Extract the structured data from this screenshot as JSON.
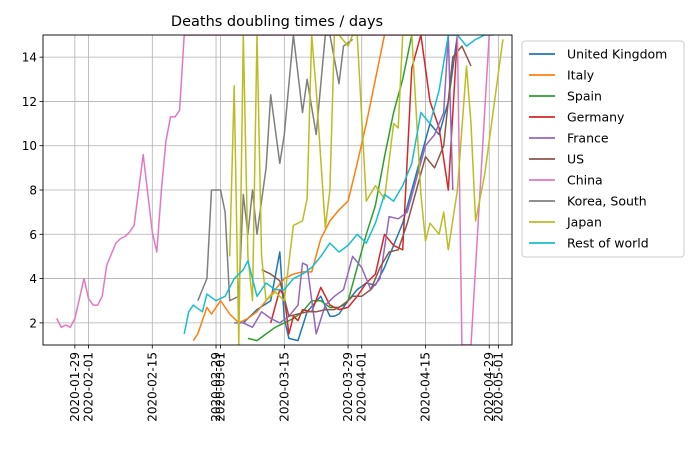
{
  "chart_data": {
    "type": "line",
    "title": "Deaths doubling times / days",
    "xlabel": "",
    "ylabel": "",
    "x_is_date": true,
    "xlim": [
      "2020-01-22",
      "2020-05-04"
    ],
    "ylim": [
      1,
      15
    ],
    "grid": true,
    "legend_placement": "outside-right",
    "x_ticks": [
      "2020-01-29",
      "2020-02-01",
      "2020-02-15",
      "2020-02-29",
      "2020-03-01",
      "2020-03-15",
      "2020-03-29",
      "2020-04-01",
      "2020-04-15",
      "2020-04-29",
      "2020-05-01"
    ],
    "y_ticks": [
      2,
      4,
      6,
      8,
      10,
      12,
      14
    ],
    "series": [
      {
        "name": "United Kingdom",
        "color": "#1f77b4",
        "x": [
          "2020-03-06",
          "2020-03-09",
          "2020-03-12",
          "2020-03-14",
          "2020-03-15",
          "2020-03-16",
          "2020-03-18",
          "2020-03-20",
          "2020-03-23",
          "2020-03-25",
          "2020-03-26",
          "2020-03-27",
          "2020-03-29",
          "2020-03-31",
          "2020-04-02",
          "2020-04-04",
          "2020-04-06",
          "2020-04-08",
          "2020-04-10",
          "2020-04-12",
          "2020-04-14",
          "2020-04-16",
          "2020-04-18",
          "2020-04-20",
          "2020-04-22"
        ],
        "values": [
          2.0,
          2.6,
          3.0,
          5.2,
          2.2,
          1.3,
          1.2,
          2.5,
          3.2,
          2.3,
          2.3,
          2.4,
          3.0,
          3.5,
          3.8,
          3.7,
          4.5,
          5.5,
          6.5,
          8.0,
          9.5,
          11.0,
          10.5,
          12.0,
          15.0
        ]
      },
      {
        "name": "Italy",
        "color": "#ff7f0e",
        "x": [
          "2020-02-24",
          "2020-02-25",
          "2020-02-27",
          "2020-02-28",
          "2020-03-01",
          "2020-03-03",
          "2020-03-05",
          "2020-03-07",
          "2020-03-09",
          "2020-03-11",
          "2020-03-13",
          "2020-03-15",
          "2020-03-17",
          "2020-03-19",
          "2020-03-21",
          "2020-03-23",
          "2020-03-25",
          "2020-03-27",
          "2020-03-29",
          "2020-03-31",
          "2020-04-02",
          "2020-04-04",
          "2020-04-06"
        ],
        "values": [
          1.2,
          1.5,
          2.7,
          2.4,
          3.0,
          2.4,
          2.0,
          2.2,
          2.5,
          3.0,
          3.5,
          4.0,
          4.2,
          4.3,
          4.3,
          5.8,
          6.6,
          7.1,
          7.5,
          9.2,
          11.0,
          13.0,
          15.0
        ]
      },
      {
        "name": "Spain",
        "color": "#2ca02c",
        "x": [
          "2020-03-07",
          "2020-03-09",
          "2020-03-11",
          "2020-03-13",
          "2020-03-15",
          "2020-03-17",
          "2020-03-19",
          "2020-03-21",
          "2020-03-23",
          "2020-03-25",
          "2020-03-27",
          "2020-03-29",
          "2020-03-31",
          "2020-04-02",
          "2020-04-04",
          "2020-04-06",
          "2020-04-08",
          "2020-04-10",
          "2020-04-12"
        ],
        "values": [
          1.3,
          1.2,
          1.5,
          1.8,
          2.0,
          2.2,
          2.5,
          3.0,
          3.0,
          2.7,
          2.7,
          3.0,
          4.5,
          6.0,
          7.3,
          9.5,
          11.5,
          13.0,
          15.0
        ]
      },
      {
        "name": "Germany",
        "color": "#d62728",
        "x": [
          "2020-03-12",
          "2020-03-14",
          "2020-03-15",
          "2020-03-16",
          "2020-03-17",
          "2020-03-18",
          "2020-03-19",
          "2020-03-21",
          "2020-03-23",
          "2020-03-25",
          "2020-03-27",
          "2020-03-29",
          "2020-03-31",
          "2020-04-02",
          "2020-04-04",
          "2020-04-06",
          "2020-04-08",
          "2020-04-10",
          "2020-04-12",
          "2020-04-14",
          "2020-04-16",
          "2020-04-18",
          "2020-04-20",
          "2020-04-22"
        ],
        "values": [
          2.0,
          3.5,
          3.2,
          1.5,
          2.3,
          2.1,
          2.6,
          2.5,
          3.6,
          2.8,
          2.6,
          2.7,
          3.2,
          3.8,
          4.2,
          6.0,
          5.5,
          5.3,
          13.5,
          15.0,
          12.0,
          10.8,
          8.0,
          15.0
        ]
      },
      {
        "name": "France",
        "color": "#9467bd",
        "x": [
          "2020-03-04",
          "2020-03-06",
          "2020-03-08",
          "2020-03-10",
          "2020-03-12",
          "2020-03-14",
          "2020-03-16",
          "2020-03-18",
          "2020-03-19",
          "2020-03-20",
          "2020-03-22",
          "2020-03-24",
          "2020-03-26",
          "2020-03-28",
          "2020-03-30",
          "2020-04-01",
          "2020-04-03",
          "2020-04-05",
          "2020-04-07",
          "2020-04-09",
          "2020-04-11",
          "2020-04-13",
          "2020-04-15",
          "2020-04-17",
          "2020-04-19",
          "2020-04-20",
          "2020-04-21"
        ],
        "values": [
          2.0,
          2.0,
          1.8,
          2.5,
          2.2,
          2.0,
          2.3,
          2.8,
          4.7,
          4.6,
          1.5,
          2.8,
          3.2,
          3.5,
          5.0,
          4.5,
          3.5,
          4.0,
          6.8,
          6.7,
          7.0,
          8.5,
          10.0,
          10.5,
          11.5,
          15.0,
          8.0
        ]
      },
      {
        "name": "US",
        "color": "#8c564b",
        "x": [
          "2020-03-10",
          "2020-03-12",
          "2020-03-14",
          "2020-03-16",
          "2020-03-18",
          "2020-03-20",
          "2020-03-22",
          "2020-03-24",
          "2020-03-26",
          "2020-03-28",
          "2020-03-30",
          "2020-04-01",
          "2020-04-03",
          "2020-04-05",
          "2020-04-07",
          "2020-04-09",
          "2020-04-11",
          "2020-04-13",
          "2020-04-15",
          "2020-04-17",
          "2020-04-19",
          "2020-04-21",
          "2020-04-23",
          "2020-04-25"
        ],
        "values": [
          4.4,
          4.2,
          3.9,
          2.3,
          2.4,
          2.5,
          2.5,
          2.6,
          2.6,
          2.8,
          3.2,
          3.2,
          3.5,
          4.5,
          5.2,
          5.3,
          6.5,
          8.0,
          9.5,
          9.0,
          10.0,
          14.0,
          14.5,
          13.6
        ]
      },
      {
        "name": "China",
        "color": "#e377c2",
        "x": [
          "2020-01-25",
          "2020-01-26",
          "2020-01-27",
          "2020-01-28",
          "2020-01-29",
          "2020-01-31",
          "2020-02-01",
          "2020-02-02",
          "2020-02-03",
          "2020-02-04",
          "2020-02-05",
          "2020-02-07",
          "2020-02-08",
          "2020-02-09",
          "2020-02-10",
          "2020-02-11",
          "2020-02-13",
          "2020-02-15",
          "2020-02-16",
          "2020-02-17",
          "2020-02-18",
          "2020-02-19",
          "2020-02-20",
          "2020-02-21",
          "2020-02-22",
          "2020-04-22",
          "2020-04-23",
          "2020-04-25",
          "2020-04-29"
        ],
        "values": [
          2.2,
          1.8,
          1.9,
          1.8,
          2.2,
          4.0,
          3.1,
          2.8,
          2.8,
          3.2,
          4.6,
          5.6,
          5.8,
          5.9,
          6.1,
          6.4,
          9.6,
          6.1,
          5.2,
          8.0,
          10.2,
          11.3,
          11.3,
          11.6,
          15.0,
          15.0,
          1.0,
          1.0,
          15.0
        ]
      },
      {
        "name": "Korea, South",
        "color": "#7f7f7f",
        "x": [
          "2020-02-25",
          "2020-02-27",
          "2020-02-28",
          "2020-03-01",
          "2020-03-02",
          "2020-03-03",
          "2020-03-05",
          "2020-03-06",
          "2020-03-07",
          "2020-03-08",
          "2020-03-09",
          "2020-03-11",
          "2020-03-12",
          "2020-03-14",
          "2020-03-15",
          "2020-03-17",
          "2020-03-19",
          "2020-03-20",
          "2020-03-22",
          "2020-03-24",
          "2020-03-25",
          "2020-03-27",
          "2020-03-28",
          "2020-03-30"
        ],
        "values": [
          3.0,
          4.0,
          8.0,
          8.0,
          7.0,
          3.0,
          3.2,
          7.8,
          6.0,
          8.0,
          6.0,
          9.0,
          12.3,
          9.2,
          10.5,
          15.0,
          11.5,
          13.0,
          10.5,
          15.0,
          15.0,
          12.8,
          14.5,
          14.8
        ]
      },
      {
        "name": "Japan",
        "color": "#bcbd22",
        "x": [
          "2020-03-03",
          "2020-03-04",
          "2020-03-05",
          "2020-03-06",
          "2020-03-07",
          "2020-03-08",
          "2020-03-09",
          "2020-03-10",
          "2020-03-11",
          "2020-03-13",
          "2020-03-15",
          "2020-03-17",
          "2020-03-19",
          "2020-03-20",
          "2020-03-21",
          "2020-03-22",
          "2020-03-24",
          "2020-03-25",
          "2020-03-26",
          "2020-03-27",
          "2020-03-29",
          "2020-03-30",
          "2020-03-31",
          "2020-04-02",
          "2020-04-04",
          "2020-04-06",
          "2020-04-08",
          "2020-04-09",
          "2020-04-10",
          "2020-04-12",
          "2020-04-14",
          "2020-04-15",
          "2020-04-16",
          "2020-04-18",
          "2020-04-19",
          "2020-04-20",
          "2020-04-22",
          "2020-04-24",
          "2020-04-25",
          "2020-04-26",
          "2020-04-28",
          "2020-05-02"
        ],
        "values": [
          5.0,
          12.7,
          1.0,
          15.0,
          5.0,
          3.0,
          15.0,
          5.0,
          3.0,
          3.4,
          3.0,
          6.4,
          6.6,
          7.6,
          15.0,
          12.5,
          6.3,
          8.0,
          15.0,
          15.0,
          14.5,
          15.0,
          15.0,
          7.5,
          8.2,
          7.6,
          11.0,
          10.8,
          15.0,
          15.0,
          7.8,
          5.7,
          6.5,
          6.0,
          7.0,
          5.3,
          8.0,
          13.6,
          11.0,
          6.6,
          8.7,
          14.8
        ]
      },
      {
        "name": "Rest of world",
        "color": "#17becf",
        "x": [
          "2020-02-22",
          "2020-02-23",
          "2020-02-24",
          "2020-02-26",
          "2020-02-27",
          "2020-02-29",
          "2020-03-02",
          "2020-03-04",
          "2020-03-06",
          "2020-03-07",
          "2020-03-09",
          "2020-03-11",
          "2020-03-13",
          "2020-03-15",
          "2020-03-17",
          "2020-03-19",
          "2020-03-21",
          "2020-03-23",
          "2020-03-25",
          "2020-03-27",
          "2020-03-29",
          "2020-03-31",
          "2020-04-02",
          "2020-04-04",
          "2020-04-06",
          "2020-04-08",
          "2020-04-10",
          "2020-04-12",
          "2020-04-14",
          "2020-04-16",
          "2020-04-18",
          "2020-04-20",
          "2020-04-22",
          "2020-04-24",
          "2020-04-26",
          "2020-04-28",
          "2020-04-30"
        ],
        "values": [
          1.5,
          2.5,
          2.8,
          2.5,
          3.3,
          3.0,
          3.2,
          4.0,
          4.4,
          4.8,
          3.2,
          3.8,
          3.5,
          3.5,
          4.0,
          4.2,
          4.5,
          5.0,
          5.6,
          5.2,
          5.5,
          6.0,
          5.6,
          6.5,
          7.8,
          7.5,
          8.2,
          9.2,
          11.5,
          11.0,
          12.5,
          15.0,
          15.0,
          14.5,
          14.8,
          15.0,
          15.0
        ]
      }
    ]
  }
}
